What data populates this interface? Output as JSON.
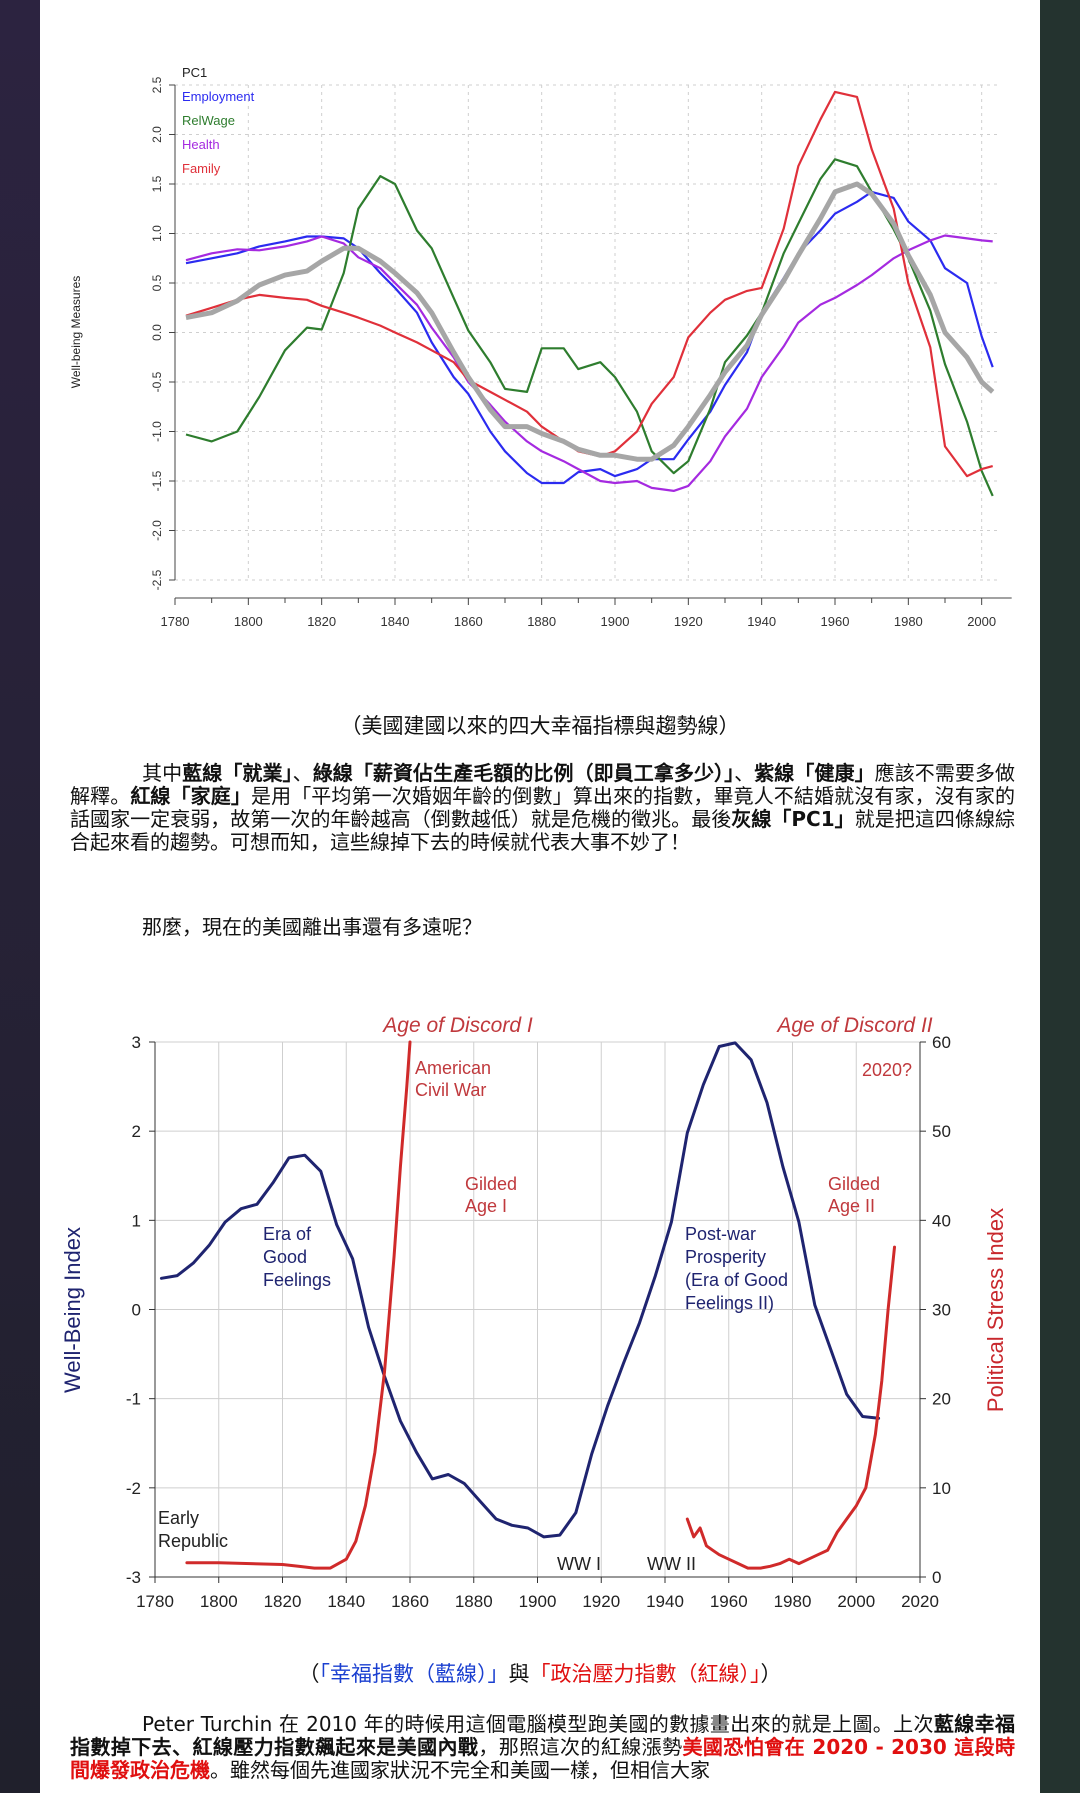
{
  "chart_data": [
    {
      "type": "line",
      "ylabel": "Well-being Measures",
      "xlim": [
        1780,
        2005
      ],
      "ylim": [
        -2.5,
        2.5
      ],
      "xticks": [
        1780,
        1800,
        1820,
        1840,
        1860,
        1880,
        1900,
        1920,
        1940,
        1960,
        1980,
        2000
      ],
      "yticks": [
        2.5,
        2.0,
        1.5,
        1.0,
        0.5,
        0.0,
        -0.5,
        -1.0,
        -1.5,
        -2.0,
        -2.5
      ],
      "ytick_labels": [
        "2.5",
        "2.0",
        "1.5",
        "1.0",
        "0.5",
        "0.0",
        "-0.5",
        "-1.0",
        "-1.5",
        "-2.0",
        "-2.5"
      ],
      "grid": true,
      "legend_position": "top-left",
      "series": [
        {
          "name": "PC1",
          "color": "#a6a6a6",
          "x": [
            1783,
            1790,
            1797,
            1803,
            1810,
            1816,
            1820,
            1826,
            1830,
            1836,
            1840,
            1846,
            1850,
            1856,
            1860,
            1866,
            1870,
            1876,
            1880,
            1886,
            1890,
            1896,
            1900,
            1906,
            1910,
            1916,
            1920,
            1926,
            1930,
            1936,
            1940,
            1946,
            1950,
            1956,
            1960,
            1966,
            1970,
            1976,
            1980,
            1986,
            1990,
            1996,
            2000,
            2003
          ],
          "y": [
            0.15,
            0.2,
            0.32,
            0.48,
            0.58,
            0.62,
            0.72,
            0.85,
            0.85,
            0.72,
            0.6,
            0.4,
            0.2,
            -0.2,
            -0.45,
            -0.78,
            -0.95,
            -0.95,
            -1.02,
            -1.1,
            -1.18,
            -1.24,
            -1.24,
            -1.28,
            -1.28,
            -1.14,
            -0.95,
            -0.63,
            -0.4,
            -0.13,
            0.18,
            0.52,
            0.78,
            1.15,
            1.42,
            1.5,
            1.4,
            1.1,
            0.78,
            0.38,
            0.0,
            -0.25,
            -0.5,
            -0.6
          ]
        },
        {
          "name": "Employment",
          "color": "#2b2bf0",
          "x": [
            1783,
            1790,
            1797,
            1803,
            1810,
            1816,
            1820,
            1826,
            1830,
            1836,
            1840,
            1846,
            1850,
            1856,
            1860,
            1866,
            1870,
            1876,
            1880,
            1886,
            1890,
            1896,
            1900,
            1906,
            1910,
            1916,
            1920,
            1926,
            1930,
            1936,
            1940,
            1946,
            1950,
            1956,
            1960,
            1966,
            1970,
            1976,
            1980,
            1986,
            1990,
            1996,
            2000,
            2003
          ],
          "y": [
            0.7,
            0.75,
            0.8,
            0.87,
            0.92,
            0.97,
            0.97,
            0.95,
            0.85,
            0.6,
            0.45,
            0.2,
            -0.1,
            -0.45,
            -0.62,
            -1.0,
            -1.2,
            -1.42,
            -1.52,
            -1.52,
            -1.41,
            -1.38,
            -1.45,
            -1.38,
            -1.28,
            -1.28,
            -1.08,
            -0.8,
            -0.53,
            -0.2,
            0.2,
            0.55,
            0.8,
            1.03,
            1.2,
            1.32,
            1.42,
            1.36,
            1.12,
            0.93,
            0.65,
            0.5,
            -0.04,
            -0.35
          ]
        },
        {
          "name": "RelWage",
          "color": "#2e7d2e",
          "x": [
            1783,
            1790,
            1797,
            1803,
            1810,
            1816,
            1820,
            1826,
            1830,
            1836,
            1840,
            1846,
            1850,
            1856,
            1860,
            1866,
            1870,
            1876,
            1880,
            1886,
            1890,
            1896,
            1900,
            1906,
            1910,
            1916,
            1920,
            1926,
            1930,
            1936,
            1940,
            1946,
            1950,
            1956,
            1960,
            1966,
            1970,
            1976,
            1980,
            1986,
            1990,
            1996,
            2000,
            2003
          ],
          "y": [
            -1.03,
            -1.1,
            -1.0,
            -0.65,
            -0.18,
            0.05,
            0.03,
            0.6,
            1.25,
            1.58,
            1.5,
            1.03,
            0.85,
            0.35,
            0.02,
            -0.3,
            -0.57,
            -0.6,
            -0.16,
            -0.16,
            -0.37,
            -0.3,
            -0.45,
            -0.8,
            -1.2,
            -1.42,
            -1.3,
            -0.77,
            -0.3,
            -0.03,
            0.2,
            0.8,
            1.1,
            1.55,
            1.75,
            1.68,
            1.42,
            1.04,
            0.75,
            0.22,
            -0.32,
            -0.9,
            -1.4,
            -1.65
          ]
        },
        {
          "name": "Health",
          "color": "#a52ae0",
          "x": [
            1783,
            1790,
            1797,
            1803,
            1810,
            1816,
            1820,
            1826,
            1830,
            1836,
            1840,
            1846,
            1850,
            1856,
            1860,
            1866,
            1870,
            1876,
            1880,
            1886,
            1890,
            1896,
            1900,
            1906,
            1910,
            1916,
            1920,
            1926,
            1930,
            1936,
            1940,
            1946,
            1950,
            1956,
            1960,
            1966,
            1970,
            1976,
            1980,
            1986,
            1990,
            1996,
            2000,
            2003
          ],
          "y": [
            0.73,
            0.8,
            0.84,
            0.83,
            0.87,
            0.92,
            0.97,
            0.9,
            0.76,
            0.65,
            0.5,
            0.28,
            0.05,
            -0.25,
            -0.5,
            -0.73,
            -0.9,
            -1.1,
            -1.2,
            -1.3,
            -1.38,
            -1.5,
            -1.52,
            -1.5,
            -1.57,
            -1.6,
            -1.55,
            -1.3,
            -1.05,
            -0.77,
            -0.45,
            -0.14,
            0.1,
            0.28,
            0.35,
            0.48,
            0.58,
            0.75,
            0.83,
            0.93,
            0.98,
            0.95,
            0.93,
            0.92
          ]
        },
        {
          "name": "Family",
          "color": "#e0303a",
          "x": [
            1783,
            1790,
            1797,
            1803,
            1810,
            1816,
            1820,
            1826,
            1830,
            1836,
            1840,
            1846,
            1850,
            1856,
            1860,
            1866,
            1870,
            1876,
            1880,
            1886,
            1890,
            1896,
            1900,
            1906,
            1910,
            1916,
            1920,
            1926,
            1930,
            1936,
            1940,
            1946,
            1950,
            1956,
            1960,
            1966,
            1970,
            1976,
            1980,
            1986,
            1990,
            1996,
            2000,
            2003
          ],
          "y": [
            0.17,
            0.25,
            0.33,
            0.38,
            0.35,
            0.33,
            0.27,
            0.2,
            0.15,
            0.07,
            0.0,
            -0.1,
            -0.18,
            -0.3,
            -0.48,
            -0.6,
            -0.68,
            -0.8,
            -0.95,
            -1.1,
            -1.2,
            -1.25,
            -1.2,
            -1.0,
            -0.72,
            -0.45,
            -0.05,
            0.2,
            0.33,
            0.42,
            0.45,
            1.05,
            1.68,
            2.15,
            2.43,
            2.38,
            1.85,
            1.25,
            0.5,
            -0.15,
            -1.15,
            -1.45,
            -1.38,
            -1.35
          ]
        }
      ]
    },
    {
      "type": "line",
      "ylabel": "Well-Being Index",
      "y2label": "Political Stress Index",
      "xlim": [
        1780,
        2020
      ],
      "ylim": [
        -3,
        3
      ],
      "y2lim": [
        0,
        60
      ],
      "xticks": [
        1780,
        1800,
        1820,
        1840,
        1860,
        1880,
        1900,
        1920,
        1940,
        1960,
        1980,
        2000,
        2020
      ],
      "yticks": [
        3,
        2,
        1,
        0,
        -1,
        -2,
        -3
      ],
      "y2ticks": [
        60,
        50,
        40,
        30,
        20,
        10,
        0
      ],
      "grid": true,
      "series": [
        {
          "name": "Well-Being Index",
          "color": "#1f2470",
          "axis": "left",
          "x": [
            1782,
            1787,
            1792,
            1797,
            1802,
            1807,
            1812,
            1817,
            1822,
            1827,
            1832,
            1837,
            1842,
            1847,
            1852,
            1857,
            1862,
            1867,
            1872,
            1877,
            1882,
            1887,
            1892,
            1897,
            1902,
            1907,
            1912,
            1917,
            1922,
            1927,
            1932,
            1937,
            1942,
            1947,
            1952,
            1957,
            1962,
            1967,
            1972,
            1977,
            1982,
            1987,
            1992,
            1997,
            2002,
            2007
          ],
          "y": [
            0.35,
            0.38,
            0.52,
            0.72,
            0.98,
            1.13,
            1.18,
            1.42,
            1.7,
            1.73,
            1.55,
            0.95,
            0.57,
            -0.2,
            -0.75,
            -1.25,
            -1.6,
            -1.9,
            -1.85,
            -1.95,
            -2.15,
            -2.35,
            -2.42,
            -2.45,
            -2.55,
            -2.53,
            -2.28,
            -1.62,
            -1.08,
            -0.6,
            -0.15,
            0.38,
            0.98,
            1.98,
            2.52,
            2.95,
            2.99,
            2.8,
            2.32,
            1.6,
            0.98,
            0.05,
            -0.45,
            -0.95,
            -1.2,
            -1.22
          ]
        },
        {
          "name": "Political Stress Index (1790-1860)",
          "color": "#d02a2a",
          "axis": "right",
          "x": [
            1790,
            1800,
            1810,
            1820,
            1825,
            1830,
            1835,
            1840,
            1843,
            1846,
            1849,
            1852,
            1855,
            1857,
            1859,
            1860
          ],
          "y": [
            1.6,
            1.6,
            1.5,
            1.4,
            1.2,
            1.0,
            1.0,
            2.0,
            4.0,
            8.0,
            14.0,
            23.0,
            36.0,
            46.0,
            55.0,
            60.0
          ]
        },
        {
          "name": "Political Stress Index (1947-2012)",
          "color": "#d02a2a",
          "axis": "right",
          "x": [
            1947,
            1949,
            1951,
            1953,
            1955,
            1957,
            1960,
            1963,
            1966,
            1970,
            1973,
            1976,
            1979,
            1982,
            1985,
            1988,
            1991,
            1994,
            1997,
            2000,
            2003,
            2006,
            2008,
            2010,
            2012
          ],
          "y": [
            6.5,
            4.5,
            5.5,
            3.5,
            3.0,
            2.5,
            2.0,
            1.5,
            1.0,
            1.0,
            1.2,
            1.5,
            2.0,
            1.5,
            2.0,
            2.5,
            3.0,
            5.0,
            6.5,
            8.0,
            10.0,
            16.0,
            22.0,
            30.0,
            37.0
          ]
        }
      ],
      "annotations": {
        "age_discord_1": "Age of Discord I",
        "age_discord_2": "Age of Discord II",
        "civil_war_1": "American",
        "civil_war_2": "Civil War",
        "year_2020": "2020?",
        "gilded1_1": "Gilded",
        "gilded1_2": "Age I",
        "gilded2_1": "Gilded",
        "gilded2_2": "Age II",
        "era_good_1": "Era of",
        "era_good_2": "Good",
        "era_good_3": "Feelings",
        "postwar_1": "Post-war",
        "postwar_2": "Prosperity",
        "postwar_3": "(Era of Good",
        "postwar_4": "Feelings II)",
        "early_1": "Early",
        "early_2": "Republic",
        "ww1": "WW I",
        "ww2": "WW II"
      }
    }
  ],
  "text": {
    "caption1": "（美國建國以來的四大幸福指標與趨勢線）",
    "p1_a": "其中",
    "p1_b": "藍線「就業」",
    "p1_c": "、",
    "p1_d": "綠線「薪資佔生產毛額的比例（即員工拿多少）」",
    "p1_e": "、",
    "p1_f": "紫線「健康」",
    "p1_g": "應該不需要多做解釋。",
    "p1_h": "紅線「家庭」",
    "p1_i": "是用「平均第一次婚姻年齡的倒數」算出來的指數，畢竟人不結婚就沒有家，沒有家的話國家一定衰弱，故第一次的年齡越高（倒數越低）就是危機的徵兆。最後",
    "p1_j": "灰線「PC1」",
    "p1_k": "就是把這四條線綜合起來看的趨勢。可想而知，這些線掉下去的時候就代表大事不妙了！",
    "p2": "那麼，現在的美國離出事還有多遠呢？",
    "caption2_a": "（",
    "caption2_b": "「幸福指數（藍線）」",
    "caption2_c": "與",
    "caption2_d": "「政治壓力指數（紅線）」",
    "caption2_e": "）",
    "p3_a": "Peter Turchin 在 2010 年的時候用這個電腦模型跑美國的數據畫出來的就是上圖。上次",
    "p3_b": "藍線幸福指數掉下去、紅線壓力指數飆起來是美國內戰",
    "p3_c": "，那照這次的紅線漲勢",
    "p3_d": "美國恐怕會在 2020 - 2030 這段時間爆發政治危機",
    "p3_e": "。雖然每個先進國家狀況不完全和美國一樣，但相信大家"
  }
}
